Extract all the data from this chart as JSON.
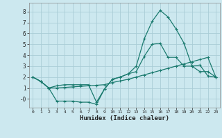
{
  "xlabel": "Humidex (Indice chaleur)",
  "bg_color": "#cce8ef",
  "grid_color": "#aacdd6",
  "line_color": "#1a7a6e",
  "x_ticks": [
    0,
    1,
    2,
    3,
    4,
    5,
    6,
    7,
    8,
    9,
    10,
    11,
    12,
    13,
    14,
    15,
    16,
    17,
    18,
    19,
    20,
    21,
    22,
    23
  ],
  "ylim": [
    -0.8,
    8.8
  ],
  "xlim": [
    -0.5,
    23.5
  ],
  "line1_y": [
    2.0,
    1.6,
    1.0,
    -0.2,
    -0.2,
    -0.2,
    -0.3,
    -0.3,
    -0.5,
    0.9,
    1.8,
    2.0,
    2.3,
    3.0,
    5.5,
    7.1,
    8.1,
    7.5,
    6.4,
    5.1,
    3.0,
    3.1,
    2.1,
    2.0
  ],
  "line2_y": [
    2.0,
    1.6,
    1.0,
    1.2,
    1.3,
    1.3,
    1.3,
    1.3,
    -0.3,
    0.9,
    1.8,
    2.0,
    2.3,
    2.5,
    3.9,
    5.0,
    5.1,
    3.8,
    3.8,
    3.0,
    3.0,
    2.5,
    2.5,
    2.0
  ],
  "line3_y": [
    2.0,
    1.6,
    1.0,
    1.0,
    1.05,
    1.1,
    1.15,
    1.2,
    1.25,
    1.3,
    1.5,
    1.65,
    1.8,
    2.0,
    2.2,
    2.4,
    2.6,
    2.8,
    3.0,
    3.2,
    3.4,
    3.6,
    3.8,
    2.0
  ]
}
